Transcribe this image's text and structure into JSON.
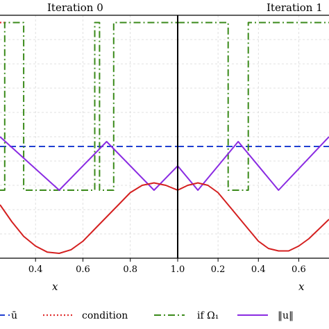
{
  "chart_data": {
    "type": "line",
    "panels": [
      {
        "title": "Iteration 0",
        "xlim": [
          0.25,
          1.0
        ],
        "xticks": [
          0.4,
          0.6,
          0.8,
          1.0
        ],
        "tick_labels": [
          "0.4",
          "0.6",
          "0.8",
          "1.0"
        ],
        "xlabel": "x"
      },
      {
        "title": "Iteration 1",
        "xlim": [
          0.0,
          0.75
        ],
        "xticks": [
          0.2,
          0.4,
          0.6
        ],
        "tick_labels": [
          "0.2",
          "0.4",
          "0.6"
        ],
        "xlabel": "x"
      }
    ],
    "ylim": [
      0.0,
      1.0
    ],
    "grid": true,
    "legend_position": "bottom",
    "series": [
      {
        "name": "ū",
        "color": "#1f3fd1",
        "style": "dashed",
        "panels": [
          {
            "x": [
              0.25,
              1.0
            ],
            "y": [
              0.46,
              0.46
            ]
          },
          {
            "x": [
              0.0,
              0.75
            ],
            "y": [
              0.46,
              0.46
            ]
          }
        ]
      },
      {
        "name": "condition",
        "color": "#e03030",
        "style": "dotted",
        "panels": [
          {
            "x": [
              0.25,
              0.27
            ],
            "y": [
              0.97,
              0.97
            ]
          },
          {
            "x": [
              0.35,
              0.36
            ],
            "y": [
              0.97,
              0.97
            ]
          }
        ]
      },
      {
        "name": "if Ω₁",
        "color": "#3a8a1a",
        "style": "dashdot",
        "panels": [
          {
            "x": [
              0.25,
              0.27,
              0.27,
              0.35,
              0.35,
              0.65,
              0.65,
              0.67,
              0.67,
              0.73,
              0.73,
              0.75,
              0.75,
              1.0
            ],
            "y": [
              0.28,
              0.28,
              0.97,
              0.97,
              0.28,
              0.28,
              0.97,
              0.97,
              0.28,
              0.28,
              0.97,
              0.97,
              0.97,
              0.97
            ]
          },
          {
            "x": [
              0.0,
              0.25,
              0.25,
              0.35,
              0.35,
              0.75
            ],
            "y": [
              0.97,
              0.97,
              0.28,
              0.28,
              0.97,
              0.97
            ]
          }
        ]
      },
      {
        "name": "‖u‖",
        "color": "#8a2be2",
        "style": "solid",
        "panels": [
          {
            "x": [
              0.25,
              0.5,
              0.7,
              0.9,
              1.0
            ],
            "y": [
              0.5,
              0.28,
              0.48,
              0.28,
              0.38
            ]
          },
          {
            "x": [
              0.0,
              0.1,
              0.3,
              0.5,
              0.75
            ],
            "y": [
              0.38,
              0.28,
              0.48,
              0.28,
              0.5
            ]
          }
        ]
      },
      {
        "name": "u",
        "color": "#d42020",
        "style": "solid",
        "legend": false,
        "panels": [
          {
            "x": [
              0.25,
              0.3,
              0.35,
              0.4,
              0.45,
              0.5,
              0.55,
              0.6,
              0.65,
              0.7,
              0.75,
              0.8,
              0.85,
              0.9,
              0.95,
              1.0
            ],
            "y": [
              0.22,
              0.15,
              0.09,
              0.05,
              0.025,
              0.02,
              0.035,
              0.07,
              0.12,
              0.17,
              0.22,
              0.27,
              0.3,
              0.31,
              0.3,
              0.28
            ]
          },
          {
            "x": [
              0.0,
              0.05,
              0.1,
              0.15,
              0.2,
              0.25,
              0.3,
              0.35,
              0.4,
              0.45,
              0.5,
              0.55,
              0.6,
              0.65,
              0.7,
              0.75
            ],
            "y": [
              0.28,
              0.3,
              0.31,
              0.3,
              0.27,
              0.22,
              0.17,
              0.12,
              0.07,
              0.04,
              0.03,
              0.03,
              0.05,
              0.08,
              0.12,
              0.16
            ]
          }
        ]
      }
    ]
  }
}
